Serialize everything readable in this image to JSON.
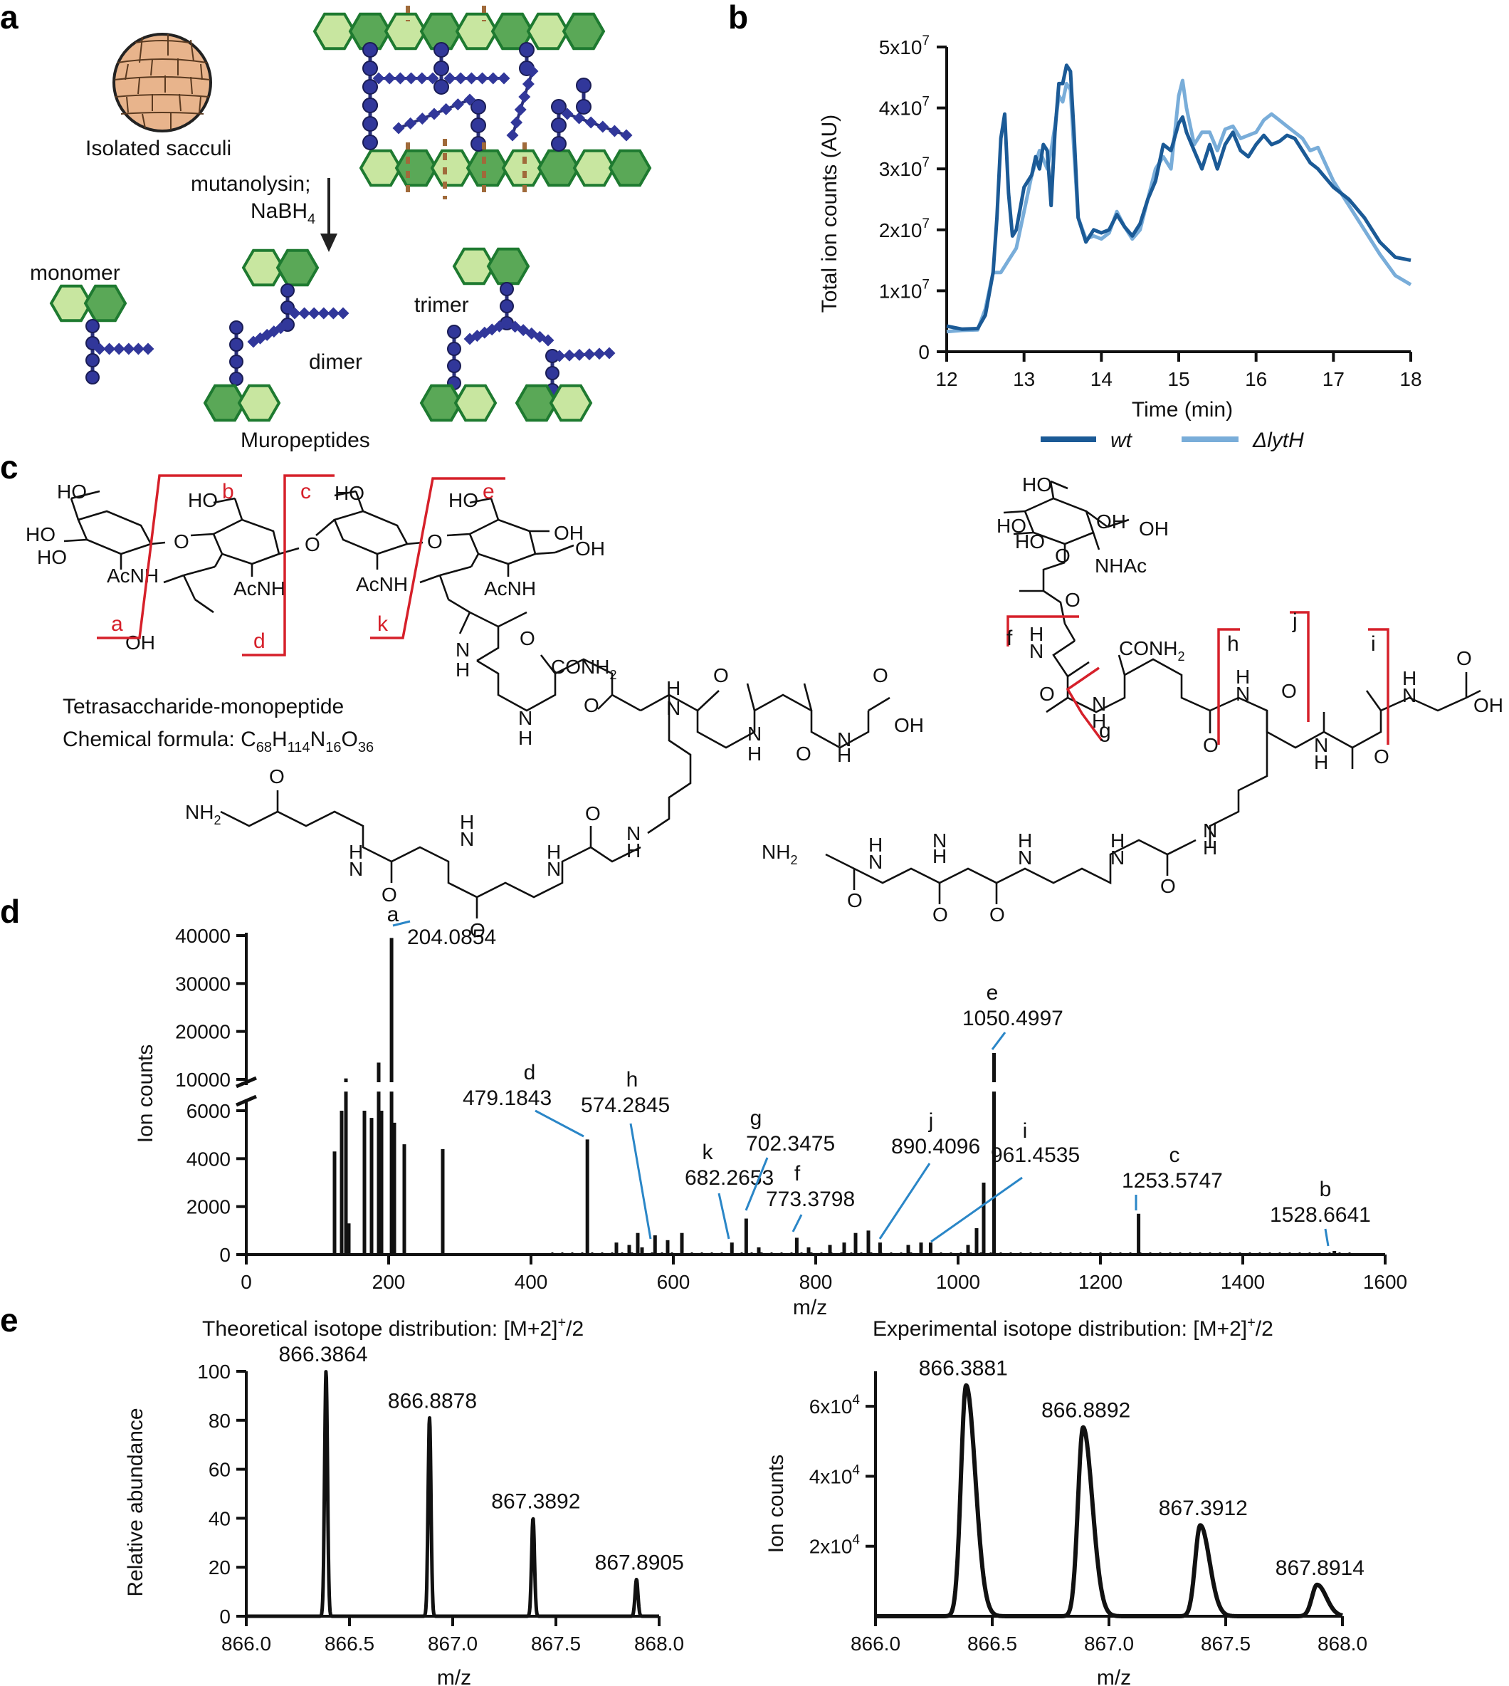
{
  "panel_labels": {
    "a": "a",
    "b": "b",
    "c": "c",
    "d": "d",
    "e": "e"
  },
  "panel_a": {
    "sacculi_label": "Isolated sacculi",
    "reaction_label_1": "mutanolysin;",
    "reaction_label_2": "NaBH",
    "reaction_label_2_sub": "4",
    "monomer": "monomer",
    "dimer": "dimer",
    "trimer": "trimer",
    "muropeptides": "Muropeptides",
    "colors": {
      "sugar_light": "#c8e6a0",
      "sugar_dark": "#5aa857",
      "sugar_edge": "#1e7a30",
      "peptide": "#2a2f7a",
      "cut": "#a06a3a",
      "sacculus": "#e8b48c"
    }
  },
  "panel_c": {
    "formula_title": "Tetrasaccharide-monopeptide",
    "formula_prefix": "Chemical formula: C",
    "formula_parts": [
      "68",
      "H",
      "114",
      "N",
      "16",
      "O",
      "36"
    ],
    "atoms": {
      "ho": "HO",
      "oh": "OH",
      "o": "O",
      "acnh": "AcNH",
      "nhac": "NHAc",
      "nh": "N",
      "h": "H",
      "nh2": "NH",
      "nh2_sub": "2",
      "conh2": "CONH",
      "conh2_sub": "2"
    },
    "cleavages": [
      "a",
      "b",
      "c",
      "d",
      "e",
      "k",
      "f",
      "g",
      "h",
      "j",
      "i"
    ]
  },
  "chart_data": [
    {
      "panel": "b",
      "type": "line",
      "xlabel": "Time (min)",
      "ylabel": "Total ion counts (AU)",
      "xlim": [
        12,
        18
      ],
      "ylim": [
        0,
        50000000
      ],
      "xticks": [
        "12",
        "13",
        "14",
        "15",
        "16",
        "17",
        "18"
      ],
      "yticks": [
        "0",
        "1x10^7",
        "2x10^7",
        "3x10^7",
        "4x10^7",
        "5x10^7"
      ],
      "legend_placement": "bottom",
      "series": [
        {
          "name": "wt",
          "color": "#1b5a96",
          "x": [
            12.0,
            12.2,
            12.4,
            12.5,
            12.6,
            12.65,
            12.7,
            12.75,
            12.8,
            12.85,
            12.9,
            13.0,
            13.1,
            13.15,
            13.2,
            13.25,
            13.3,
            13.35,
            13.4,
            13.45,
            13.5,
            13.55,
            13.6,
            13.65,
            13.7,
            13.8,
            13.9,
            14.0,
            14.1,
            14.2,
            14.3,
            14.4,
            14.5,
            14.6,
            14.7,
            14.8,
            14.9,
            15.0,
            15.05,
            15.1,
            15.2,
            15.3,
            15.4,
            15.5,
            15.6,
            15.7,
            15.8,
            15.9,
            16.0,
            16.1,
            16.2,
            16.3,
            16.4,
            16.5,
            16.6,
            16.7,
            16.8,
            17.0,
            17.2,
            17.4,
            17.6,
            17.8,
            18.0
          ],
          "y": [
            4.2,
            3.7,
            3.8,
            6.0,
            13.0,
            22.0,
            35.0,
            39.0,
            26.0,
            19.0,
            20.0,
            27.0,
            29.0,
            32.0,
            30.0,
            34.0,
            33.0,
            24.0,
            36.0,
            44.0,
            44.0,
            47.0,
            46.0,
            35.0,
            22.0,
            18.0,
            20.0,
            19.5,
            20.0,
            22.5,
            20.5,
            19.0,
            21.0,
            25.0,
            28.0,
            34.0,
            33.0,
            37.5,
            38.5,
            36.0,
            33.0,
            30.0,
            34.0,
            30.0,
            34.0,
            36.0,
            33.0,
            32.0,
            34.0,
            35.5,
            34.0,
            34.5,
            35.5,
            35.0,
            33.0,
            31.0,
            30.0,
            27.0,
            25.0,
            22.0,
            18.0,
            15.5,
            15.0
          ]
        },
        {
          "name": "ΔlytH",
          "color": "#79add9",
          "x": [
            12.0,
            12.2,
            12.4,
            12.5,
            12.6,
            12.7,
            12.8,
            12.9,
            13.0,
            13.1,
            13.2,
            13.3,
            13.35,
            13.4,
            13.45,
            13.5,
            13.55,
            13.6,
            13.65,
            13.7,
            13.8,
            13.9,
            14.0,
            14.1,
            14.2,
            14.3,
            14.4,
            14.5,
            14.6,
            14.7,
            14.8,
            14.9,
            15.0,
            15.05,
            15.1,
            15.2,
            15.3,
            15.4,
            15.5,
            15.6,
            15.7,
            15.8,
            15.9,
            16.0,
            16.1,
            16.2,
            16.3,
            16.4,
            16.5,
            16.6,
            16.7,
            16.8,
            17.0,
            17.2,
            17.4,
            17.6,
            17.8,
            18.0
          ],
          "y": [
            3.3,
            3.5,
            3.6,
            7.0,
            13.0,
            13.0,
            15.0,
            17.0,
            23.0,
            29.0,
            33.0,
            30.0,
            33.0,
            37.0,
            42.0,
            41.0,
            44.0,
            43.0,
            32.0,
            22.0,
            18.5,
            19.0,
            18.5,
            19.5,
            23.0,
            20.5,
            18.5,
            20.0,
            25.0,
            30.0,
            32.0,
            30.0,
            42.0,
            44.5,
            40.0,
            34.0,
            36.0,
            36.0,
            33.0,
            36.5,
            37.0,
            35.0,
            35.5,
            36.0,
            38.0,
            39.0,
            38.0,
            37.0,
            36.0,
            35.0,
            33.0,
            33.5,
            28.0,
            24.0,
            20.0,
            16.0,
            12.5,
            11.0
          ]
        }
      ],
      "y_unit_factor": 1000000
    },
    {
      "panel": "d",
      "type": "bar",
      "xlabel": "m/z",
      "ylabel": "Ion counts",
      "xlim": [
        0,
        1600
      ],
      "xticks": [
        "0",
        "200",
        "400",
        "600",
        "800",
        "1000",
        "1200",
        "1400",
        "1600"
      ],
      "yticks_lower": [
        "0",
        "2000",
        "4000",
        "6000"
      ],
      "yticks_upper": [
        "10000",
        "20000",
        "30000",
        "40000"
      ],
      "axis_break": [
        6500,
        9500
      ],
      "peaks": [
        {
          "mz": 124,
          "y": 4300
        },
        {
          "mz": 134,
          "y": 6000
        },
        {
          "mz": 140,
          "y": 10200
        },
        {
          "mz": 144,
          "y": 1300
        },
        {
          "mz": 166,
          "y": 6000
        },
        {
          "mz": 176,
          "y": 5700
        },
        {
          "mz": 186,
          "y": 13500
        },
        {
          "mz": 190,
          "y": 6000
        },
        {
          "mz": 204.0854,
          "y": 39500
        },
        {
          "mz": 208,
          "y": 5500
        },
        {
          "mz": 222,
          "y": 4600
        },
        {
          "mz": 276,
          "y": 4400
        },
        {
          "mz": 479.1843,
          "y": 4800
        },
        {
          "mz": 520,
          "y": 500
        },
        {
          "mz": 538,
          "y": 400
        },
        {
          "mz": 550,
          "y": 900
        },
        {
          "mz": 556,
          "y": 300
        },
        {
          "mz": 574.2845,
          "y": 800
        },
        {
          "mz": 592,
          "y": 600
        },
        {
          "mz": 612,
          "y": 900
        },
        {
          "mz": 682.2653,
          "y": 500
        },
        {
          "mz": 702.3475,
          "y": 1500
        },
        {
          "mz": 720,
          "y": 300
        },
        {
          "mz": 773.3798,
          "y": 700
        },
        {
          "mz": 790,
          "y": 300
        },
        {
          "mz": 820,
          "y": 400
        },
        {
          "mz": 840,
          "y": 500
        },
        {
          "mz": 856,
          "y": 900
        },
        {
          "mz": 874,
          "y": 1000
        },
        {
          "mz": 890.4096,
          "y": 500
        },
        {
          "mz": 930,
          "y": 400
        },
        {
          "mz": 948,
          "y": 500
        },
        {
          "mz": 961.4535,
          "y": 500
        },
        {
          "mz": 1014,
          "y": 400
        },
        {
          "mz": 1026,
          "y": 1100
        },
        {
          "mz": 1036,
          "y": 3000
        },
        {
          "mz": 1050.4997,
          "y": 15500
        },
        {
          "mz": 1253.5747,
          "y": 1700
        },
        {
          "mz": 1528.6641,
          "y": 150
        }
      ],
      "annotations": [
        {
          "letter": "a",
          "label": "204.0854"
        },
        {
          "letter": "d",
          "label": "479.1843"
        },
        {
          "letter": "h",
          "label": "574.2845"
        },
        {
          "letter": "k",
          "label": "682.2653"
        },
        {
          "letter": "g",
          "label": "702.3475"
        },
        {
          "letter": "f",
          "label": "773.3798"
        },
        {
          "letter": "j",
          "label": "890.4096"
        },
        {
          "letter": "i",
          "label": "961.4535"
        },
        {
          "letter": "e",
          "label": "1050.4997"
        },
        {
          "letter": "c",
          "label": "1253.5747"
        },
        {
          "letter": "b",
          "label": "1528.6641"
        }
      ]
    },
    {
      "panel": "e-left",
      "type": "line",
      "title": "Theoretical isotope distribution: [M+2]",
      "title_sup": "+",
      "title_tail": "/2",
      "xlabel": "m/z",
      "ylabel": "Relative abundance",
      "xlim": [
        866.0,
        868.0
      ],
      "ylim": [
        0,
        100
      ],
      "xticks": [
        "866.0",
        "866.5",
        "867.0",
        "867.5",
        "868.0"
      ],
      "yticks": [
        "0",
        "20",
        "40",
        "60",
        "80",
        "100"
      ],
      "peaks": [
        {
          "mz": 866.3864,
          "y": 100,
          "label": "866.3864"
        },
        {
          "mz": 866.8878,
          "y": 81,
          "label": "866.8878"
        },
        {
          "mz": 867.3892,
          "y": 40,
          "label": "867.3892"
        },
        {
          "mz": 867.8905,
          "y": 15,
          "label": "867.8905"
        }
      ]
    },
    {
      "panel": "e-right",
      "type": "line",
      "title": "Experimental isotope distribution: [M+2]",
      "title_sup": "+",
      "title_tail": "/2",
      "xlabel": "m/z",
      "ylabel": "Ion counts",
      "xlim": [
        866.0,
        868.0
      ],
      "ylim": [
        0,
        70000
      ],
      "xticks": [
        "866.0",
        "866.5",
        "867.0",
        "867.5",
        "868.0"
      ],
      "yticks": [
        "2x10^4",
        "4x10^4",
        "6x10^4"
      ],
      "peaks": [
        {
          "mz": 866.3881,
          "y": 66000,
          "label": "866.3881"
        },
        {
          "mz": 866.8892,
          "y": 54000,
          "label": "866.8892"
        },
        {
          "mz": 867.3912,
          "y": 26000,
          "label": "867.3912"
        },
        {
          "mz": 867.8914,
          "y": 9000,
          "label": "867.8914"
        }
      ]
    }
  ]
}
